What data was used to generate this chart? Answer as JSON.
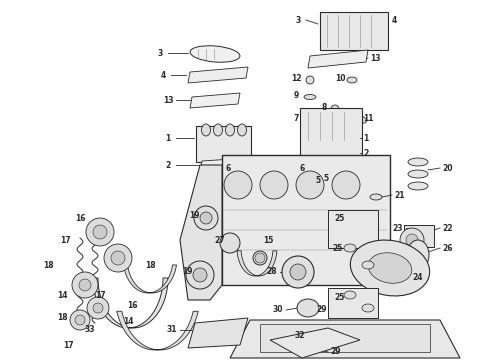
{
  "bg": "#ffffff",
  "fg": "#2a2a2a",
  "figw": 4.9,
  "figh": 3.6,
  "dpi": 100
}
